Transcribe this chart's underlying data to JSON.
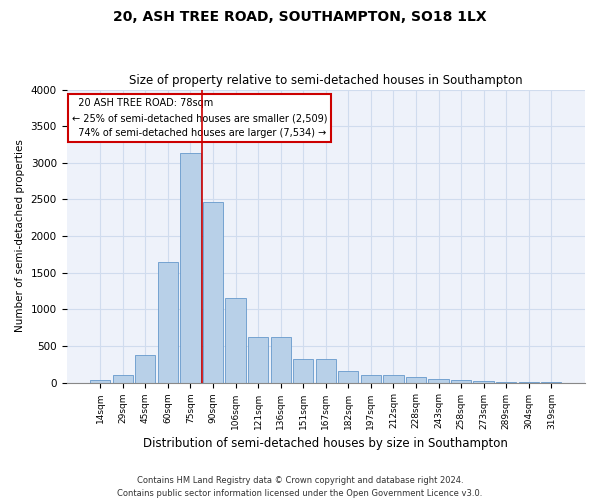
{
  "title": "20, ASH TREE ROAD, SOUTHAMPTON, SO18 1LX",
  "subtitle": "Size of property relative to semi-detached houses in Southampton",
  "xlabel": "Distribution of semi-detached houses by size in Southampton",
  "ylabel": "Number of semi-detached properties",
  "footer_line1": "Contains HM Land Registry data © Crown copyright and database right 2024.",
  "footer_line2": "Contains public sector information licensed under the Open Government Licence v3.0.",
  "bar_color": "#b8d0e8",
  "bar_edge_color": "#6699cc",
  "grid_color": "#d0dcee",
  "background_color": "#eef2fa",
  "annotation_box_color": "#ffffff",
  "annotation_border_color": "#cc0000",
  "vline_color": "#cc0000",
  "categories": [
    "14sqm",
    "29sqm",
    "45sqm",
    "60sqm",
    "75sqm",
    "90sqm",
    "106sqm",
    "121sqm",
    "136sqm",
    "151sqm",
    "167sqm",
    "182sqm",
    "197sqm",
    "212sqm",
    "228sqm",
    "243sqm",
    "258sqm",
    "273sqm",
    "289sqm",
    "304sqm",
    "319sqm"
  ],
  "values": [
    30,
    100,
    370,
    1640,
    3130,
    2460,
    1150,
    620,
    620,
    320,
    320,
    160,
    100,
    100,
    70,
    55,
    40,
    25,
    10,
    5,
    3
  ],
  "property_label": "20 ASH TREE ROAD: 78sqm",
  "pct_smaller": 25,
  "pct_smaller_n": "2,509",
  "pct_larger": 74,
  "pct_larger_n": "7,534",
  "vline_x_index": 4.5,
  "ylim": [
    0,
    4000
  ],
  "yticks": [
    0,
    500,
    1000,
    1500,
    2000,
    2500,
    3000,
    3500,
    4000
  ]
}
